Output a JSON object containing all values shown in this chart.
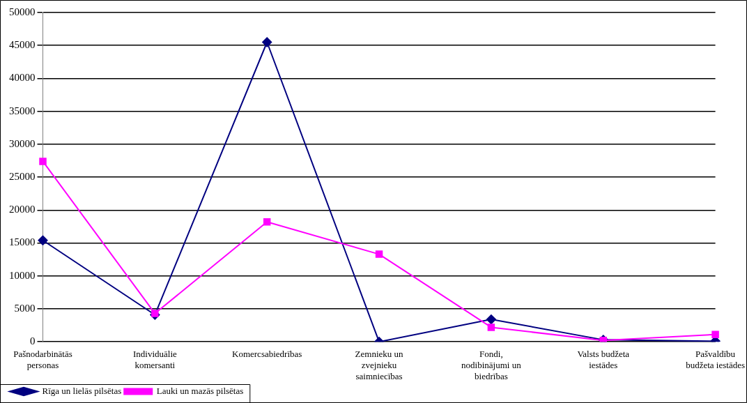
{
  "chart_data": {
    "type": "line",
    "categories": [
      "Pašnodarbinātās personas",
      "Individuālie komersanti",
      "Komercsabiedrības",
      "Zemnieku un zvejnieku saimniecības",
      "Fondi, nodibinājumi un biedrības",
      "Valsts budžeta iestādes",
      "Pašvaldību budžeta iestādes"
    ],
    "series": [
      {
        "name": "Rīga un lielās pilsētas",
        "color": "#000080",
        "marker": "diamond",
        "values": [
          15400,
          4100,
          45500,
          0,
          3400,
          300,
          100
        ]
      },
      {
        "name": "Lauki un mazās pilsētas",
        "color": "#ff00ff",
        "marker": "square",
        "values": [
          27400,
          4300,
          18200,
          13300,
          2200,
          200,
          1100
        ]
      }
    ],
    "ylim": [
      0,
      50000
    ],
    "yticks": [
      0,
      5000,
      10000,
      15000,
      20000,
      25000,
      30000,
      35000,
      40000,
      45000,
      50000
    ],
    "grid": "y",
    "legend": "bottom left",
    "line_style": "solid"
  }
}
